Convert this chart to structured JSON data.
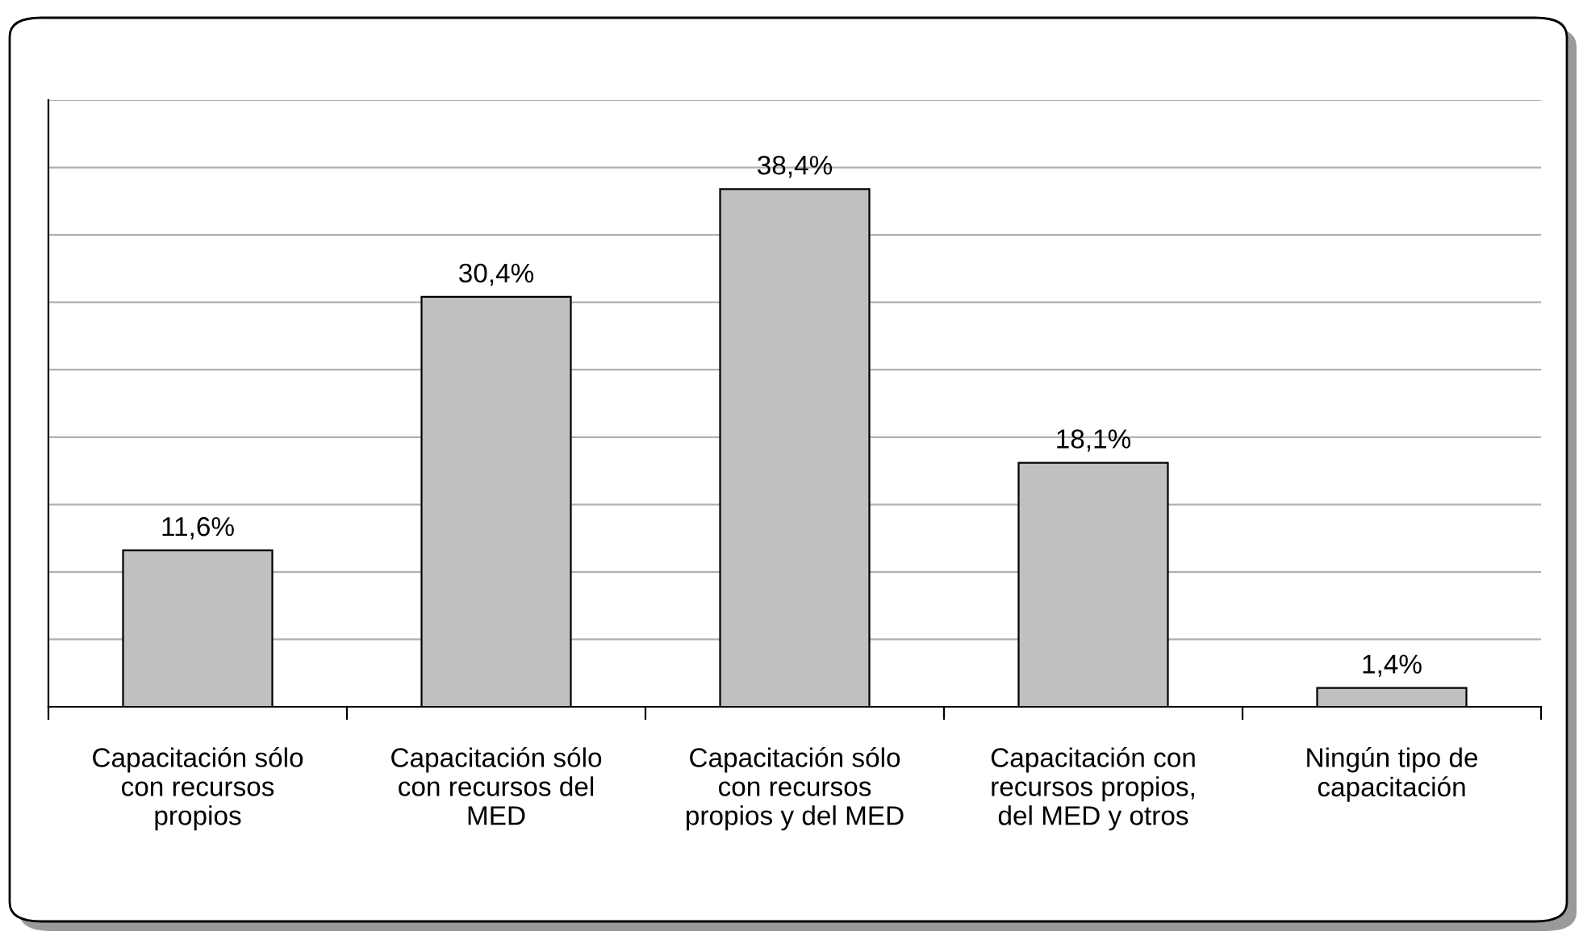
{
  "chart_data": {
    "type": "bar",
    "categories": [
      "Capacitación sólo con recursos propios",
      "Capacitación sólo con recursos del MED",
      "Capacitación sólo con recursos propios y del MED",
      "Capacitación con recursos propios, del MED y otros",
      "Ningún tipo de capacitación"
    ],
    "values": [
      11.6,
      30.4,
      38.4,
      18.1,
      1.4
    ],
    "value_labels": [
      "11,6%",
      "30,4%",
      "38,4%",
      "18,1%",
      "1,4%"
    ],
    "color": "#c0c0c0",
    "ylim": [
      0,
      45
    ],
    "yticks": [
      {
        "value": 0,
        "label": null
      },
      {
        "value": 5,
        "label": null
      },
      {
        "value": 10,
        "label": null
      },
      {
        "value": 15,
        "label": null
      },
      {
        "value": 20,
        "label": null
      },
      {
        "value": 25,
        "label": null
      },
      {
        "value": 30,
        "label": null
      },
      {
        "value": 35,
        "label": null
      },
      {
        "value": 40,
        "label": null
      },
      {
        "value": 45,
        "label": null
      }
    ],
    "grid": "y",
    "legend": false
  }
}
